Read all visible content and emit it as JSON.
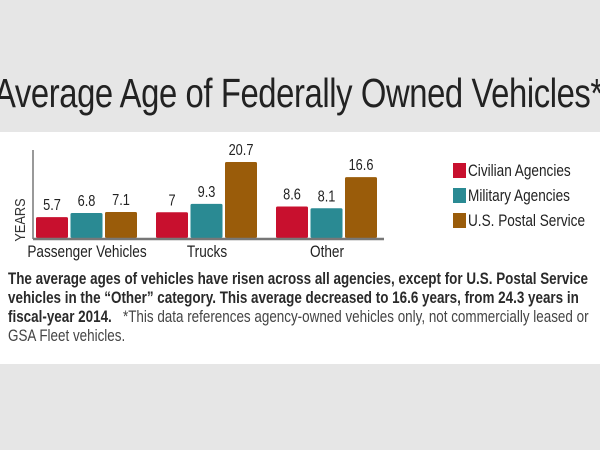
{
  "chart_data": {
    "type": "bar",
    "title": "Average Age of Federally Owned Vehicles*",
    "ylabel": "YEARS",
    "categories": [
      "Passenger Vehicles",
      "Trucks",
      "Other"
    ],
    "series": [
      {
        "name": "Civilian Agencies",
        "color": "#c8102e",
        "values": [
          5.7,
          7,
          8.6
        ]
      },
      {
        "name": "Military Agencies",
        "color": "#2a8a93",
        "values": [
          6.8,
          9.3,
          8.1
        ]
      },
      {
        "name": "U.S. Postal Service",
        "color": "#9a5c0a",
        "values": [
          7.1,
          20.7,
          16.6
        ]
      }
    ],
    "ylim": [
      0,
      22
    ],
    "grid": false,
    "legend": "right"
  },
  "note": {
    "bold": "The average ages of vehicles have risen across all agencies, except for U.S. Postal Service vehicles in the “Other” category. This average decreased to 16.6 years, from 24.3 years in fiscal-year 2014.",
    "footnote": "*This data references agency-owned vehicles only, not commercially leased or GSA Fleet vehicles."
  }
}
